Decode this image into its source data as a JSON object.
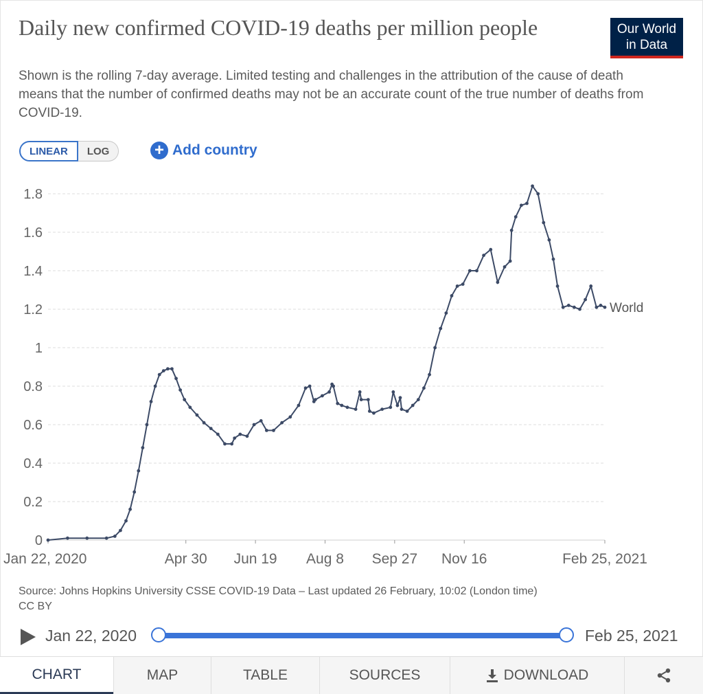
{
  "header": {
    "title": "Daily new confirmed COVID-19 deaths per million people",
    "subtitle": "Shown is the rolling 7-day average. Limited testing and challenges in the attribution of the cause of death means that the number of confirmed deaths may not be an accurate count of the true number of deaths from COVID-19.",
    "logo_line1": "Our World",
    "logo_line2": "in Data"
  },
  "controls": {
    "linear_label": "LINEAR",
    "log_label": "LOG",
    "add_country_label": "Add country",
    "active_scale": "linear"
  },
  "colors": {
    "series": "#3c4a66",
    "accent": "#2f6ccd",
    "logo_bg": "#002147",
    "logo_stripe": "#ce261e"
  },
  "chart_data": {
    "type": "line",
    "title": "Daily new confirmed COVID-19 deaths per million people",
    "xlabel": "",
    "ylabel": "",
    "xlim": [
      "2020-01-22",
      "2021-02-25"
    ],
    "ylim": [
      0,
      1.8
    ],
    "grid": true,
    "y_ticks": [
      0,
      0.2,
      0.4,
      0.6,
      0.8,
      1,
      1.2,
      1.4,
      1.6,
      1.8
    ],
    "y_tick_labels": [
      "0",
      "0.2",
      "0.4",
      "0.6",
      "0.8",
      "1",
      "1.2",
      "1.4",
      "1.6",
      "1.8"
    ],
    "x_ticks": [
      "2020-01-22",
      "2020-04-30",
      "2020-06-19",
      "2020-08-08",
      "2020-09-27",
      "2020-11-16",
      "2021-02-25"
    ],
    "x_tick_labels": [
      "Jan 22, 2020",
      "Apr 30",
      "Jun 19",
      "Aug 8",
      "Sep 27",
      "Nov 16",
      "Feb 25, 2021"
    ],
    "series": [
      {
        "name": "World",
        "x": [
          "2020-01-22",
          "2020-02-05",
          "2020-02-19",
          "2020-03-04",
          "2020-03-10",
          "2020-03-14",
          "2020-03-18",
          "2020-03-21",
          "2020-03-24",
          "2020-03-27",
          "2020-03-30",
          "2020-04-02",
          "2020-04-05",
          "2020-04-08",
          "2020-04-11",
          "2020-04-14",
          "2020-04-17",
          "2020-04-20",
          "2020-04-23",
          "2020-04-26",
          "2020-04-29",
          "2020-05-03",
          "2020-05-08",
          "2020-05-13",
          "2020-05-18",
          "2020-05-23",
          "2020-05-28",
          "2020-06-02",
          "2020-06-04",
          "2020-06-08",
          "2020-06-13",
          "2020-06-18",
          "2020-06-23",
          "2020-06-27",
          "2020-07-02",
          "2020-07-08",
          "2020-07-14",
          "2020-07-20",
          "2020-07-25",
          "2020-07-28",
          "2020-07-31",
          "2020-08-01",
          "2020-08-06",
          "2020-08-11",
          "2020-08-13",
          "2020-08-14",
          "2020-08-17",
          "2020-08-20",
          "2020-08-24",
          "2020-08-30",
          "2020-09-02",
          "2020-09-03",
          "2020-09-08",
          "2020-09-09",
          "2020-09-12",
          "2020-09-18",
          "2020-09-24",
          "2020-09-26",
          "2020-09-29",
          "2020-10-01",
          "2020-10-02",
          "2020-10-06",
          "2020-10-10",
          "2020-10-14",
          "2020-10-18",
          "2020-10-22",
          "2020-10-26",
          "2020-10-30",
          "2020-11-03",
          "2020-11-07",
          "2020-11-11",
          "2020-11-15",
          "2020-11-20",
          "2020-11-25",
          "2020-11-30",
          "2020-12-05",
          "2020-12-10",
          "2020-12-15",
          "2020-12-19",
          "2020-12-20",
          "2020-12-23",
          "2020-12-27",
          "2020-12-31",
          "2021-01-04",
          "2021-01-08",
          "2021-01-12",
          "2021-01-16",
          "2021-01-19",
          "2021-01-22",
          "2021-01-26",
          "2021-01-30",
          "2021-02-03",
          "2021-02-07",
          "2021-02-11",
          "2021-02-15",
          "2021-02-19",
          "2021-02-22",
          "2021-02-25"
        ],
        "y": [
          0,
          0.01,
          0.01,
          0.01,
          0.02,
          0.05,
          0.1,
          0.16,
          0.25,
          0.36,
          0.48,
          0.6,
          0.72,
          0.8,
          0.86,
          0.88,
          0.89,
          0.89,
          0.84,
          0.78,
          0.73,
          0.69,
          0.65,
          0.61,
          0.58,
          0.55,
          0.5,
          0.5,
          0.53,
          0.55,
          0.54,
          0.6,
          0.62,
          0.57,
          0.57,
          0.61,
          0.64,
          0.7,
          0.79,
          0.8,
          0.72,
          0.73,
          0.75,
          0.77,
          0.81,
          0.8,
          0.71,
          0.7,
          0.69,
          0.68,
          0.77,
          0.73,
          0.73,
          0.67,
          0.66,
          0.68,
          0.69,
          0.77,
          0.7,
          0.74,
          0.68,
          0.67,
          0.7,
          0.73,
          0.79,
          0.86,
          1.0,
          1.1,
          1.18,
          1.27,
          1.32,
          1.33,
          1.4,
          1.4,
          1.48,
          1.51,
          1.34,
          1.42,
          1.45,
          1.61,
          1.68,
          1.74,
          1.75,
          1.84,
          1.8,
          1.65,
          1.56,
          1.46,
          1.32,
          1.21,
          1.22,
          1.21,
          1.2,
          1.25,
          1.32,
          1.21,
          1.22,
          1.21
        ]
      }
    ]
  },
  "source": {
    "text": "Source: Johns Hopkins University CSSE COVID-19 Data – Last updated 26 February, 10:02 (London time)",
    "license": "CC BY"
  },
  "timeline": {
    "start_label": "Jan 22, 2020",
    "end_label": "Feb 25, 2021",
    "start_fraction": 0,
    "end_fraction": 1
  },
  "tabs": {
    "chart": "CHART",
    "map": "MAP",
    "table": "TABLE",
    "sources": "SOURCES",
    "download": "DOWNLOAD",
    "active": "chart"
  }
}
